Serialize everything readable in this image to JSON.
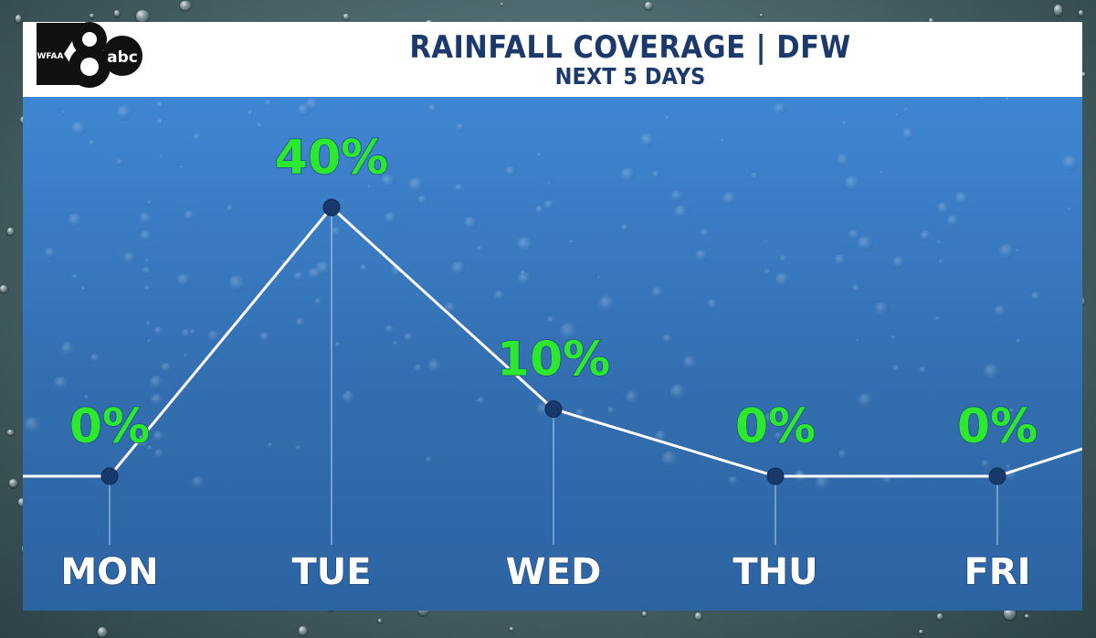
{
  "header": {
    "title": "RAINFALL COVERAGE | DFW",
    "subtitle": "NEXT 5 DAYS"
  },
  "logo": {
    "station": "WFAA",
    "channel": "8",
    "network": "abc"
  },
  "colors": {
    "panel_blue": "#3a7cc6",
    "value_green": "#2ee82e",
    "point_navy": "#173a6b",
    "title_navy": "#1b3a6b"
  },
  "chart_data": {
    "type": "line",
    "categories": [
      "MON",
      "TUE",
      "WED",
      "THU",
      "FRI"
    ],
    "values": [
      0,
      40,
      10,
      0,
      0
    ],
    "value_labels": [
      "0%",
      "40%",
      "10%",
      "0%",
      "0%"
    ],
    "title": "RAINFALL COVERAGE | DFW",
    "subtitle": "NEXT 5 DAYS",
    "xlabel": "",
    "ylabel": "",
    "ylim": [
      0,
      100
    ],
    "grid": false,
    "legend": "none"
  }
}
